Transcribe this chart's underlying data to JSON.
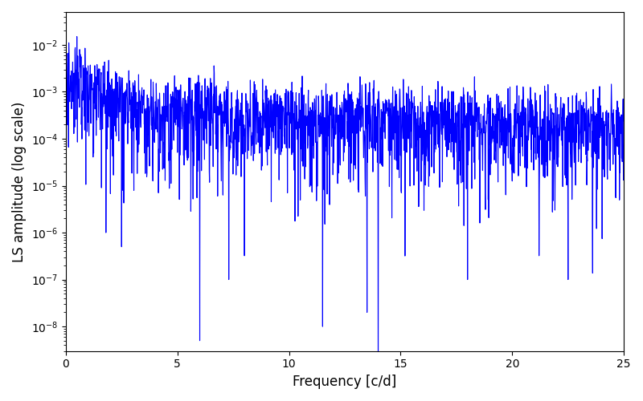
{
  "title": "",
  "xlabel": "Frequency [c/d]",
  "ylabel": "LS amplitude (log scale)",
  "line_color": "#0000FF",
  "line_width": 0.8,
  "xlim": [
    0,
    25
  ],
  "ylim": [
    3e-09,
    0.05
  ],
  "xticks": [
    0,
    5,
    10,
    15,
    20,
    25
  ],
  "figsize": [
    8.0,
    5.0
  ],
  "dpi": 100,
  "n_points": 2000,
  "seed": 42,
  "background_color": "#ffffff"
}
